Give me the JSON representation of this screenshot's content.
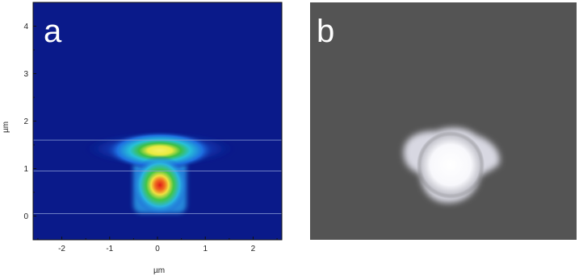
{
  "figure": {
    "panel_a": {
      "letter": "a",
      "xlabel": "µm",
      "ylabel": "µm",
      "background_color": "#0a1a8a",
      "xlim": [
        -2.6,
        2.6
      ],
      "ylim": [
        -0.5,
        4.5
      ],
      "x_ticks": [
        "-2",
        "-1",
        "0",
        "1",
        "2"
      ],
      "y_ticks": [
        "0",
        "1",
        "2",
        "3",
        "4"
      ],
      "guide_lines_y_um": [
        1.6,
        0.95,
        0.05
      ],
      "colormap": [
        "#0a1a8a",
        "#1a55d8",
        "#29a8f0",
        "#41e0c8",
        "#7ee070",
        "#d8e830",
        "#f0c020",
        "#e84020"
      ]
    },
    "panel_b": {
      "letter": "b",
      "background_color": "#545454",
      "spot_color": "#ffffff"
    }
  }
}
